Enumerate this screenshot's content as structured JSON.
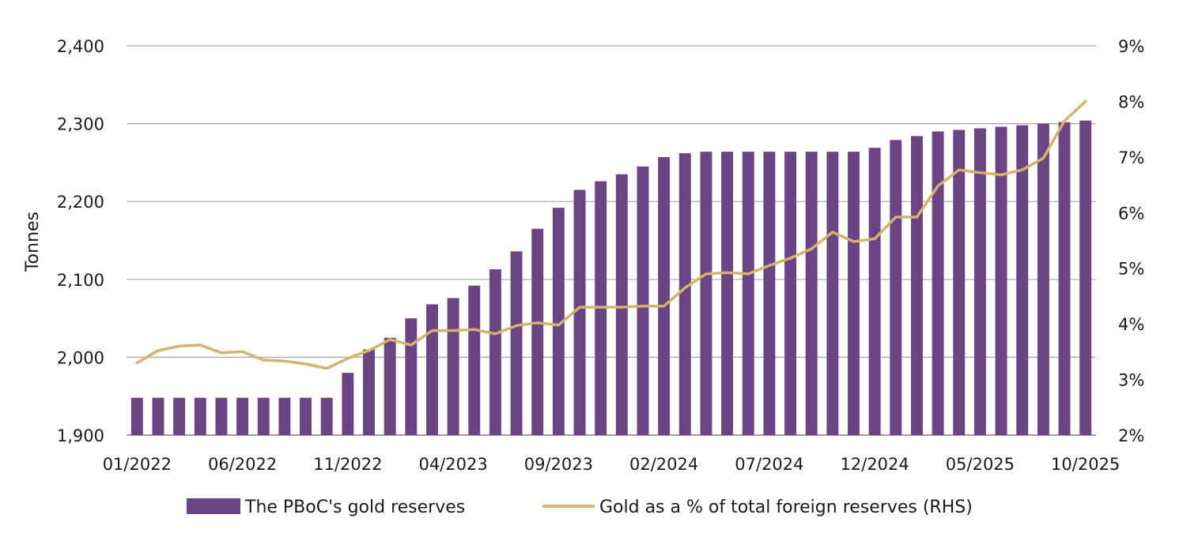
{
  "chart_data": {
    "type": "bar+line",
    "title": "",
    "ylabel": "Tonnes",
    "ylim": [
      1900,
      2400
    ],
    "y_ticks": [
      "1,900",
      "2,000",
      "2,100",
      "2,200",
      "2,300",
      "2,400"
    ],
    "y2lim": [
      2,
      9
    ],
    "y2_ticks": [
      "2%",
      "3%",
      "4%",
      "5%",
      "6%",
      "7%",
      "8%",
      "9%"
    ],
    "x_ticks": [
      "01/2022",
      "06/2022",
      "11/2022",
      "04/2023",
      "09/2023",
      "02/2024",
      "07/2024",
      "12/2024",
      "05/2025",
      "10/2025"
    ],
    "categories": [
      "01/2022",
      "02/2022",
      "03/2022",
      "04/2022",
      "05/2022",
      "06/2022",
      "07/2022",
      "08/2022",
      "09/2022",
      "10/2022",
      "11/2022",
      "12/2022",
      "01/2023",
      "02/2023",
      "03/2023",
      "04/2023",
      "05/2023",
      "06/2023",
      "07/2023",
      "08/2023",
      "09/2023",
      "10/2023",
      "11/2023",
      "12/2023",
      "01/2024",
      "02/2024",
      "03/2024",
      "04/2024",
      "05/2024",
      "06/2024",
      "07/2024",
      "08/2024",
      "09/2024",
      "10/2024",
      "11/2024",
      "12/2024",
      "01/2025",
      "02/2025",
      "03/2025",
      "04/2025",
      "05/2025",
      "06/2025",
      "07/2025",
      "08/2025",
      "09/2025",
      "10/2025"
    ],
    "series": [
      {
        "name": "The PBoC's gold reserves",
        "type": "bar",
        "axis": "left",
        "color": "#6b4583",
        "values": [
          1948,
          1948,
          1948,
          1948,
          1948,
          1948,
          1948,
          1948,
          1948,
          1948,
          1980,
          2010,
          2025,
          2050,
          2068,
          2076,
          2092,
          2113,
          2136,
          2165,
          2192,
          2215,
          2226,
          2235,
          2245,
          2257,
          2262,
          2264,
          2264,
          2264,
          2264,
          2264,
          2264,
          2264,
          2264,
          2269,
          2279,
          2284,
          2290,
          2292,
          2294,
          2296,
          2298,
          2300,
          2302,
          2304
        ]
      },
      {
        "name": "Gold as a % of total foreign reserves (RHS)",
        "type": "line",
        "axis": "right",
        "color": "#d3b46e",
        "values": [
          3.3,
          3.52,
          3.6,
          3.62,
          3.48,
          3.5,
          3.35,
          3.33,
          3.28,
          3.2,
          3.38,
          3.52,
          3.72,
          3.62,
          3.88,
          3.88,
          3.9,
          3.82,
          3.97,
          4.02,
          3.98,
          4.3,
          4.3,
          4.3,
          4.32,
          4.32,
          4.65,
          4.9,
          4.92,
          4.9,
          5.05,
          5.18,
          5.35,
          5.65,
          5.48,
          5.53,
          5.92,
          5.92,
          6.48,
          6.77,
          6.72,
          6.68,
          6.77,
          6.98,
          7.65,
          8.0
        ]
      }
    ],
    "legend": [
      "The PBoC's gold reserves",
      "Gold as a % of total foreign reserves (RHS)"
    ],
    "legend_position": "bottom",
    "grid": true
  }
}
